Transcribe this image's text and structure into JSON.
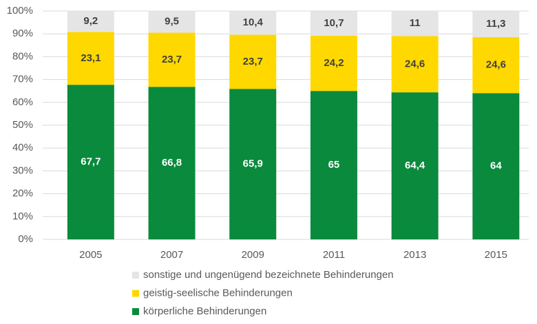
{
  "chart_data": {
    "type": "stacked_bar",
    "categories": [
      "2005",
      "2007",
      "2009",
      "2011",
      "2013",
      "2015"
    ],
    "series": [
      {
        "name": "körperliche Behinderungen",
        "color": "#0a8a3c",
        "label_color": "#ffffff",
        "values": [
          67.7,
          66.8,
          65.9,
          65,
          64.4,
          64
        ],
        "value_labels": [
          "67,7",
          "66,8",
          "65,9",
          "65",
          "64,4",
          "64"
        ]
      },
      {
        "name": "geistig-seelische Behinderungen",
        "color": "#ffd800",
        "label_color": "#404040",
        "values": [
          23.1,
          23.7,
          23.7,
          24.2,
          24.6,
          24.6
        ],
        "value_labels": [
          "23,1",
          "23,7",
          "23,7",
          "24,2",
          "24,6",
          "24,6"
        ]
      },
      {
        "name": "sonstige und ungenügend bezeichnete Behinderungen",
        "color": "#e5e5e5",
        "label_color": "#404040",
        "values": [
          9.2,
          9.5,
          10.4,
          10.7,
          11,
          11.3
        ],
        "value_labels": [
          "9,2",
          "9,5",
          "10,4",
          "10,7",
          "11",
          "11,3"
        ]
      }
    ],
    "ylim": [
      0,
      100
    ],
    "yticks": [
      {
        "value": 0,
        "label": "0%"
      },
      {
        "value": 10,
        "label": "10%"
      },
      {
        "value": 20,
        "label": "20%"
      },
      {
        "value": 30,
        "label": "30%"
      },
      {
        "value": 40,
        "label": "40%"
      },
      {
        "value": 50,
        "label": "50%"
      },
      {
        "value": 60,
        "label": "60%"
      },
      {
        "value": 70,
        "label": "70%"
      },
      {
        "value": 80,
        "label": "80%"
      },
      {
        "value": 90,
        "label": "90%"
      },
      {
        "value": 100,
        "label": "100%"
      }
    ],
    "grid": true,
    "legend": "bottom"
  }
}
